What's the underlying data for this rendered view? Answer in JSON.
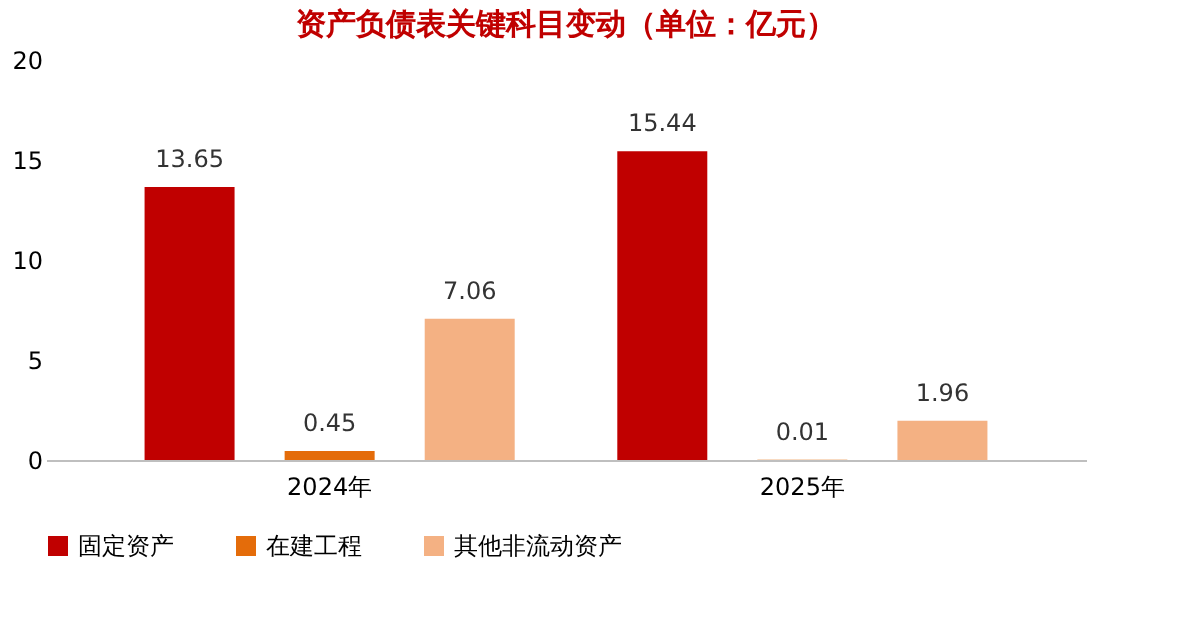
{
  "chart_data": {
    "type": "bar",
    "title": "资产负债表关键科目变动（单位：亿元）",
    "categories": [
      "2024年",
      "2025年"
    ],
    "series": [
      {
        "name": "固定资产",
        "color": "#c00000",
        "values": [
          13.65,
          15.44
        ]
      },
      {
        "name": "在建工程",
        "color": "#e46c0a",
        "values": [
          0.45,
          0.01
        ]
      },
      {
        "name": "其他非流动资产",
        "color": "#f4b183",
        "values": [
          7.06,
          1.96
        ]
      }
    ],
    "ylim": [
      0,
      20
    ],
    "yticks": [
      0,
      5,
      10,
      15,
      20
    ],
    "grid": false,
    "legend": "bottom",
    "data_labels": true
  }
}
